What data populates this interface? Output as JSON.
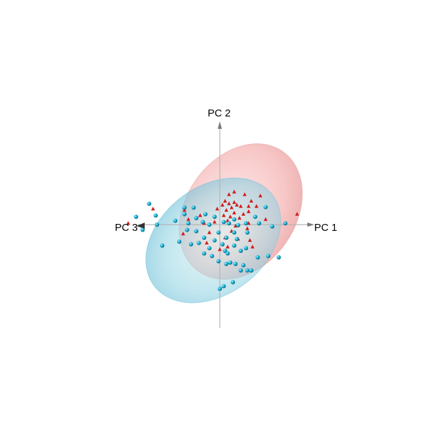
{
  "chart_data": {
    "type": "scatter",
    "projection": "3d",
    "axes": {
      "pc1_label": "PC 1",
      "pc2_label": "PC 2",
      "pc3_label": "PC 3"
    },
    "grid": false,
    "legend": "none",
    "axis_color": "#b5b5b5",
    "series": [
      {
        "marker": "triangle",
        "color": "#d01c1c",
        "ellipse_color": "#f08b8b",
        "points": [
          {
            "x": 0.35,
            "y": 1.15
          },
          {
            "x": 0.55,
            "y": 1.25
          },
          {
            "x": 0.95,
            "y": 1.15
          },
          {
            "x": 1.55,
            "y": 1.1
          },
          {
            "x": 1.2,
            "y": 0.9
          },
          {
            "x": 0.2,
            "y": 0.9
          },
          {
            "x": 0.55,
            "y": 0.85
          },
          {
            "x": 0.35,
            "y": 0.8
          },
          {
            "x": 0.65,
            "y": 0.75
          },
          {
            "x": 0.8,
            "y": 0.7
          },
          {
            "x": 1.1,
            "y": 0.7
          },
          {
            "x": 1.4,
            "y": 0.7
          },
          {
            "x": 0.1,
            "y": 0.75
          },
          {
            "x": 0.45,
            "y": 0.65
          },
          {
            "x": 0.25,
            "y": 0.55
          },
          {
            "x": -0.1,
            "y": 0.6
          },
          {
            "x": -2.55,
            "y": 0.6
          },
          {
            "x": -1.35,
            "y": 0.55
          },
          {
            "x": 1.1,
            "y": 0.5
          },
          {
            "x": 0.55,
            "y": 0.45
          },
          {
            "x": 0.9,
            "y": 0.4
          },
          {
            "x": -0.75,
            "y": 0.35
          },
          {
            "x": 0.15,
            "y": 0.35
          },
          {
            "x": 0.4,
            "y": 0.3
          },
          {
            "x": -0.2,
            "y": 0.1
          },
          {
            "x": 1.1,
            "y": 0.05
          },
          {
            "x": -1.2,
            "y": 0.2
          },
          {
            "x": 0.6,
            "y": -0.05
          },
          {
            "x": 1.75,
            "y": 0.2
          },
          {
            "x": 0.3,
            "y": 0.15
          },
          {
            "x": -0.6,
            "y": 0.05
          },
          {
            "x": 0.75,
            "y": 0.25
          },
          {
            "x": 2.95,
            "y": 0.4
          },
          {
            "x": -3.5,
            "y": 0.05
          },
          {
            "x": -0.4,
            "y": -0.3
          },
          {
            "x": 0.45,
            "y": -0.25
          },
          {
            "x": 1.05,
            "y": -0.15
          },
          {
            "x": -1.4,
            "y": -0.35
          },
          {
            "x": 0.2,
            "y": -0.5
          },
          {
            "x": 0.7,
            "y": -0.55
          },
          {
            "x": 1.15,
            "y": -0.6
          },
          {
            "x": -0.5,
            "y": -0.7
          },
          {
            "x": 0.3,
            "y": -0.85
          },
          {
            "x": 0.0,
            "y": -0.95
          },
          {
            "x": 1.25,
            "y": -0.85
          }
        ],
        "ellipse": {
          "cx": 0.8,
          "cy": 0.5,
          "rx": 2.8,
          "ry": 2.1,
          "angle": -55
        }
      },
      {
        "marker": "sphere",
        "color": "#18b4d6",
        "ellipse_color": "#7fcde0",
        "points": [
          {
            "x": -2.7,
            "y": 0.8
          },
          {
            "x": -1.35,
            "y": 0.65
          },
          {
            "x": -1.0,
            "y": 0.65
          },
          {
            "x": 1.75,
            "y": 0.67
          },
          {
            "x": -2.45,
            "y": 0.35
          },
          {
            "x": -1.35,
            "y": 0.4
          },
          {
            "x": -0.55,
            "y": 0.4
          },
          {
            "x": 1.35,
            "y": 0.3
          },
          {
            "x": -3.2,
            "y": 0.3
          },
          {
            "x": -0.9,
            "y": 0.25
          },
          {
            "x": -0.2,
            "y": 0.3
          },
          {
            "x": -1.7,
            "y": 0.15
          },
          {
            "x": 0.55,
            "y": 0.2
          },
          {
            "x": -0.65,
            "y": 0.1
          },
          {
            "x": 0.15,
            "y": 0.1
          },
          {
            "x": -2.4,
            "y": 0.0
          },
          {
            "x": -1.2,
            "y": 0.05
          },
          {
            "x": 0.35,
            "y": 0.05
          },
          {
            "x": 1.0,
            "y": 0.05
          },
          {
            "x": 1.5,
            "y": 0.05
          },
          {
            "x": 2.5,
            "y": 0.05
          },
          {
            "x": -0.4,
            "y": 0.0
          },
          {
            "x": 0.7,
            "y": -0.02
          },
          {
            "x": 2.0,
            "y": -0.07
          },
          {
            "x": -2.95,
            "y": -0.2
          },
          {
            "x": -1.25,
            "y": -0.2
          },
          {
            "x": -0.9,
            "y": -0.25
          },
          {
            "x": -0.05,
            "y": -0.3
          },
          {
            "x": 0.55,
            "y": -0.3
          },
          {
            "x": 1.05,
            "y": -0.3
          },
          {
            "x": -0.6,
            "y": -0.5
          },
          {
            "x": 0.25,
            "y": -0.5
          },
          {
            "x": 0.65,
            "y": -0.55
          },
          {
            "x": -1.55,
            "y": -0.65
          },
          {
            "x": -0.2,
            "y": -0.6
          },
          {
            "x": -2.2,
            "y": -0.8
          },
          {
            "x": -1.1,
            "y": -0.75
          },
          {
            "x": -0.8,
            "y": -0.7
          },
          {
            "x": 0.1,
            "y": -0.75
          },
          {
            "x": 0.55,
            "y": -0.8
          },
          {
            "x": -0.4,
            "y": -0.9
          },
          {
            "x": 0.2,
            "y": -1.0
          },
          {
            "x": 0.8,
            "y": -1.0
          },
          {
            "x": 1.0,
            "y": -0.9
          },
          {
            "x": -0.6,
            "y": -1.1
          },
          {
            "x": 0.3,
            "y": -1.1
          },
          {
            "x": -0.3,
            "y": -1.2
          },
          {
            "x": 1.45,
            "y": -1.25
          },
          {
            "x": 1.85,
            "y": -1.2
          },
          {
            "x": 2.25,
            "y": -1.25
          },
          {
            "x": -0.05,
            "y": -1.4
          },
          {
            "x": 0.25,
            "y": -1.5
          },
          {
            "x": 0.4,
            "y": -1.45
          },
          {
            "x": 0.6,
            "y": -1.5
          },
          {
            "x": 0.9,
            "y": -1.55
          },
          {
            "x": 0.8,
            "y": -1.75
          },
          {
            "x": 1.05,
            "y": -1.75
          },
          {
            "x": 1.2,
            "y": -1.75
          },
          {
            "x": 0.5,
            "y": -2.2
          },
          {
            "x": 0.15,
            "y": -2.35
          },
          {
            "x": 0.0,
            "y": -2.45
          }
        ],
        "ellipse": {
          "cx": -0.25,
          "cy": -0.6,
          "rx": 2.85,
          "ry": 2.05,
          "angle": -38
        }
      }
    ]
  }
}
